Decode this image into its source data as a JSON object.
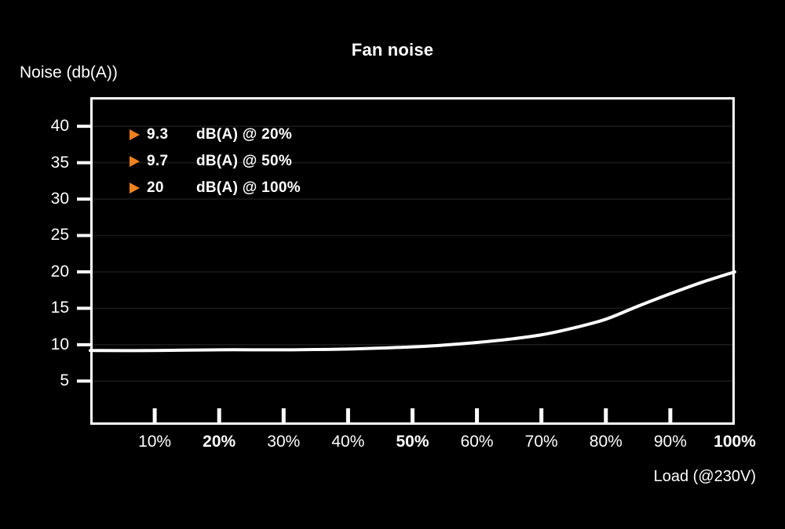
{
  "title": "Fan noise",
  "y_axis_label": "Noise (db(A))",
  "x_axis_label": "Load (@230V)",
  "colors": {
    "background": "#000000",
    "text": "#ffffff",
    "axis": "#ffffff",
    "gridline": "#1a1a1a",
    "curve": "#ffffff",
    "marker_orange": "#ef801e"
  },
  "legend": [
    {
      "value": "9.3",
      "label": "dB(A) @ 20%"
    },
    {
      "value": "9.7",
      "label": "dB(A) @ 50%"
    },
    {
      "value": "20",
      "label": "dB(A) @ 100%"
    }
  ],
  "chart_data": {
    "type": "line",
    "title": "Fan noise",
    "xlabel": "Load (@230V)",
    "ylabel": "Noise (db(A))",
    "x": [
      0,
      10,
      20,
      30,
      40,
      50,
      55,
      60,
      65,
      70,
      75,
      80,
      85,
      90,
      95,
      100
    ],
    "series": [
      {
        "name": "Fan noise dB(A)",
        "values": [
          9.2,
          9.2,
          9.3,
          9.3,
          9.4,
          9.7,
          9.95,
          10.3,
          10.75,
          11.35,
          12.3,
          13.5,
          15.3,
          17.0,
          18.6,
          20.0
        ]
      }
    ],
    "key_points": [
      {
        "x_pct": 20,
        "db": 9.3
      },
      {
        "x_pct": 50,
        "db": 9.7
      },
      {
        "x_pct": 100,
        "db": 20
      }
    ],
    "y_ticks": [
      5,
      10,
      15,
      20,
      25,
      30,
      35,
      40
    ],
    "x_ticks_pct": [
      10,
      20,
      30,
      40,
      50,
      60,
      70,
      80,
      90
    ],
    "x_tick_labels": [
      "10%",
      "20%",
      "30%",
      "40%",
      "50%",
      "60%",
      "70%",
      "80%",
      "90%",
      "100%"
    ],
    "x_tick_label_pcts": [
      10,
      20,
      30,
      40,
      50,
      60,
      70,
      80,
      90,
      100
    ],
    "bold_x_tick_labels": [
      "20%",
      "50%",
      "100%"
    ],
    "xlim": [
      0,
      100
    ],
    "ylim": [
      -1,
      44
    ],
    "grid": "horizontal",
    "legend_position": "top-left-inside"
  }
}
